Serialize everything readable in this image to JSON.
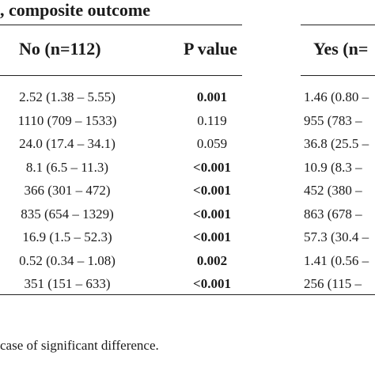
{
  "title": ", composite outcome",
  "columns": {
    "no": "No (n=112)",
    "p": "P value",
    "yes": "Yes (n="
  },
  "rows": [
    {
      "no": "2.52 (1.38 – 5.55)",
      "p": "0.001",
      "p_bold": true,
      "yes": "1.46 (0.80 –"
    },
    {
      "no": "1110 (709 – 1533)",
      "p": "0.119",
      "p_bold": false,
      "yes": "955 (783 –"
    },
    {
      "no": "24.0 (17.4 – 34.1)",
      "p": "0.059",
      "p_bold": false,
      "yes": "36.8 (25.5 –"
    },
    {
      "no": "8.1 (6.5 – 11.3)",
      "p": "<0.001",
      "p_bold": true,
      "yes": "10.9 (8.3 –"
    },
    {
      "no": "366 (301 – 472)",
      "p": "<0.001",
      "p_bold": true,
      "yes": "452 (380 –"
    },
    {
      "no": "835 (654 – 1329)",
      "p": "<0.001",
      "p_bold": true,
      "yes": "863 (678 –"
    },
    {
      "no": "16.9 (1.5 – 52.3)",
      "p": "<0.001",
      "p_bold": true,
      "yes": "57.3 (30.4 –"
    },
    {
      "no": "0.52 (0.34 – 1.08)",
      "p": "0.002",
      "p_bold": true,
      "yes": "1.41 (0.56 –"
    },
    {
      "no": "351 (151 – 633)",
      "p": "<0.001",
      "p_bold": true,
      "yes": "256 (115 –"
    }
  ],
  "footnote": "case of significant difference."
}
